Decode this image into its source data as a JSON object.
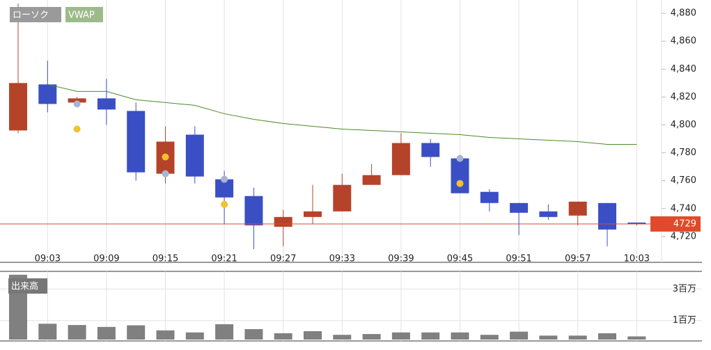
{
  "chart_data": {
    "type": "candlestick",
    "candle_name": "ローソク",
    "categories": [
      null,
      "09:03",
      null,
      "09:09",
      null,
      "09:15",
      null,
      "09:21",
      null,
      "09:27",
      null,
      "09:33",
      null,
      "09:39",
      null,
      "09:45",
      null,
      "09:51",
      null,
      "09:57",
      null,
      "10:03"
    ],
    "open": [
      4796,
      4829,
      4816,
      4819,
      4810,
      4765,
      4793,
      4761,
      4749,
      4727,
      4734,
      4738,
      4757,
      4764,
      4787,
      4776,
      4752,
      4744,
      4738,
      4735,
      4744,
      4730
    ],
    "high": [
      4887,
      4846,
      4820,
      4833,
      4816,
      4799,
      4799,
      4767,
      4755,
      4739,
      4757,
      4765,
      4772,
      4794,
      4790,
      4777,
      4754,
      4744,
      4743,
      4745,
      4744,
      4730
    ],
    "low": [
      4794,
      4809,
      4813,
      4800,
      4760,
      4758,
      4758,
      4729,
      4711,
      4713,
      4729,
      4738,
      4757,
      4764,
      4770,
      4751,
      4738,
      4721,
      4732,
      4728,
      4713,
      4728
    ],
    "close": [
      4830,
      4815,
      4819,
      4811,
      4766,
      4788,
      4763,
      4748,
      4728,
      4734,
      4738,
      4757,
      4764,
      4787,
      4777,
      4751,
      4744,
      4737,
      4734,
      4745,
      4725,
      4729
    ],
    "up_color": "#b5432a",
    "down_color": "#3b4fc4",
    "ylim": [
      4701.5,
      4889.5
    ],
    "yticks": [
      {
        "value": 4720,
        "label": "4,720"
      },
      {
        "value": 4740,
        "label": "4,740"
      },
      {
        "value": 4760,
        "label": "4,760"
      },
      {
        "value": 4780,
        "label": "4,780"
      },
      {
        "value": 4800,
        "label": "4,800"
      },
      {
        "value": 4820,
        "label": "4,820"
      },
      {
        "value": 4840,
        "label": "4,840"
      },
      {
        "value": 4860,
        "label": "4,860"
      },
      {
        "value": 4880,
        "label": "4,880"
      }
    ],
    "vwap": {
      "name": "VWAP",
      "color": "#4a8a2a",
      "values": [
        null,
        4829,
        4824,
        4824,
        4818,
        4816,
        4814,
        4808,
        4804,
        4801,
        4799,
        4797,
        4796,
        4795,
        4794,
        4793,
        4791,
        4790,
        4789,
        4788,
        4786,
        4786
      ]
    },
    "dots": [
      {
        "color": "#a9b4d4",
        "values": [
          null,
          null,
          4815,
          null,
          null,
          4765,
          null,
          4761,
          null,
          null,
          null,
          null,
          null,
          null,
          null,
          4776,
          null,
          null,
          null,
          null,
          null,
          null
        ]
      },
      {
        "color": "#f2c12e",
        "values": [
          null,
          null,
          4797,
          null,
          null,
          4777,
          null,
          4743,
          null,
          null,
          null,
          null,
          null,
          null,
          null,
          4758,
          null,
          null,
          null,
          null,
          null,
          null
        ]
      }
    ],
    "last_price": {
      "value": 4729,
      "color": "#e04a2a"
    },
    "volume": {
      "title": "出来高",
      "color": "#808080",
      "values": [
        3.9,
        0.8,
        0.72,
        0.6,
        0.7,
        0.38,
        0.25,
        0.77,
        0.46,
        0.2,
        0.33,
        0.1,
        0.15,
        0.25,
        0.25,
        0.25,
        0.1,
        0.3,
        0.05,
        0.05,
        0.2,
        0
      ],
      "ylim": [
        -0.2,
        4.2
      ],
      "yticks": [
        {
          "value": 1,
          "label": "1百万"
        },
        {
          "value": 3,
          "label": "3百万"
        }
      ]
    }
  }
}
